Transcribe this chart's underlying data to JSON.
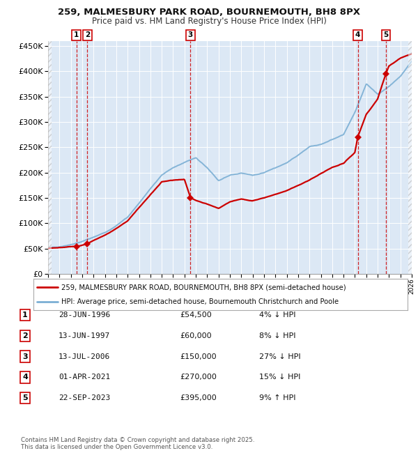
{
  "title_line1": "259, MALMESBURY PARK ROAD, BOURNEMOUTH, BH8 8PX",
  "title_line2": "Price paid vs. HM Land Registry's House Price Index (HPI)",
  "legend_line1": "259, MALMESBURY PARK ROAD, BOURNEMOUTH, BH8 8PX (semi-detached house)",
  "legend_line2": "HPI: Average price, semi-detached house, Bournemouth Christchurch and Poole",
  "footer_line1": "Contains HM Land Registry data © Crown copyright and database right 2025.",
  "footer_line2": "This data is licensed under the Open Government Licence v3.0.",
  "price_color": "#cc0000",
  "hpi_color": "#7bafd4",
  "plot_bg": "#dce8f5",
  "grid_color": "#ffffff",
  "xmin": 1994,
  "xmax": 2026,
  "ymin": 0,
  "ymax": 450000,
  "yticks": [
    0,
    50000,
    100000,
    150000,
    200000,
    250000,
    300000,
    350000,
    400000,
    450000
  ],
  "ytick_labels": [
    "£0",
    "£50K",
    "£100K",
    "£150K",
    "£200K",
    "£250K",
    "£300K",
    "£350K",
    "£400K",
    "£450K"
  ],
  "sales": [
    {
      "num": 1,
      "year": 1996.49,
      "price": 54500,
      "label": "28-JUN-1996",
      "amount": "£54,500",
      "hpi_txt": "4% ↓ HPI"
    },
    {
      "num": 2,
      "year": 1997.45,
      "price": 60000,
      "label": "13-JUN-1997",
      "amount": "£60,000",
      "hpi_txt": "8% ↓ HPI"
    },
    {
      "num": 3,
      "year": 2006.53,
      "price": 150000,
      "label": "13-JUL-2006",
      "amount": "£150,000",
      "hpi_txt": "27% ↓ HPI"
    },
    {
      "num": 4,
      "year": 2021.25,
      "price": 270000,
      "label": "01-APR-2021",
      "amount": "£270,000",
      "hpi_txt": "15% ↓ HPI"
    },
    {
      "num": 5,
      "year": 2023.73,
      "price": 395000,
      "label": "22-SEP-2023",
      "amount": "£395,000",
      "hpi_txt": "9% ↑ HPI"
    }
  ],
  "hpi_data": {
    "years": [
      1994,
      1995,
      1996,
      1997,
      1998,
      1999,
      2000,
      2001,
      2002,
      2003,
      2004,
      2005,
      2006,
      2007,
      2008,
      2009,
      2010,
      2011,
      2012,
      2013,
      2014,
      2015,
      2016,
      2017,
      2018,
      2019,
      2020,
      2021,
      2022,
      2023,
      2024,
      2025,
      2026
    ],
    "values": [
      52000,
      54000,
      58000,
      64000,
      72000,
      82000,
      96000,
      112000,
      140000,
      168000,
      195000,
      210000,
      220000,
      230000,
      210000,
      185000,
      195000,
      200000,
      195000,
      200000,
      210000,
      220000,
      235000,
      250000,
      255000,
      265000,
      275000,
      320000,
      375000,
      355000,
      370000,
      390000,
      420000
    ]
  },
  "price_data": {
    "years": [
      1994,
      1995,
      1996,
      1996.49,
      1997,
      1997.45,
      1998,
      1999,
      2000,
      2001,
      2002,
      2003,
      2004,
      2005,
      2006,
      2006.53,
      2007,
      2008,
      2009,
      2010,
      2011,
      2012,
      2013,
      2014,
      2015,
      2016,
      2017,
      2018,
      2019,
      2020,
      2021,
      2021.25,
      2022,
      2023,
      2023.73,
      2024,
      2025,
      2026
    ],
    "values": [
      50000,
      52000,
      54000,
      54500,
      57000,
      60000,
      67000,
      77000,
      90000,
      105000,
      131000,
      157000,
      182000,
      185000,
      186000,
      150000,
      145000,
      138000,
      130000,
      142000,
      148000,
      145000,
      150000,
      158000,
      165000,
      175000,
      185000,
      198000,
      210000,
      218000,
      240000,
      270000,
      315000,
      345000,
      395000,
      410000,
      425000,
      435000
    ]
  }
}
